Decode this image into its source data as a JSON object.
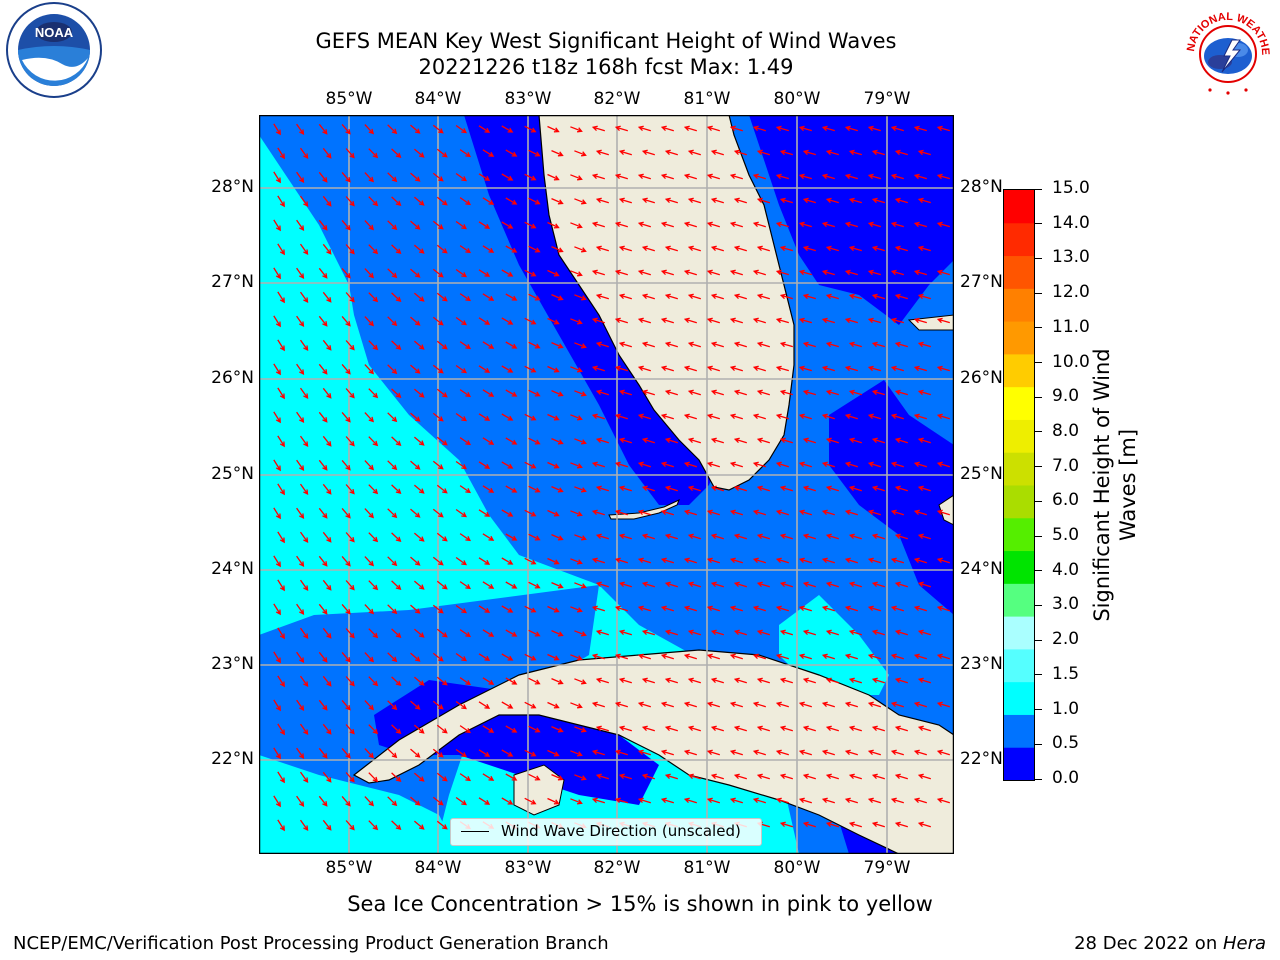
{
  "header": {
    "title_line1": "GEFS MEAN Key West Significant Height of Wind Waves",
    "title_line2": "20221226 t18z 168h fcst   Max: 1.49"
  },
  "logos": {
    "left": {
      "icon": "noaa-logo",
      "text": "NOAA"
    },
    "right": {
      "icon": "national-weather-service-logo",
      "text": "NATIONAL WEATHER SERVICE"
    }
  },
  "map": {
    "lon_labels": [
      "85°W",
      "84°W",
      "83°W",
      "82°W",
      "81°W",
      "80°W",
      "79°W"
    ],
    "lat_labels": [
      "28°N",
      "27°N",
      "26°N",
      "25°N",
      "24°N",
      "23°N",
      "22°N"
    ],
    "land_color": "#efecdc",
    "arrow_color": "#ff0000",
    "legend_label": "Wind Wave Direction (unscaled)"
  },
  "colorbar": {
    "label_line1": "Significant Height of Wind",
    "label_line2": "Waves [m]",
    "ticks": [
      "0.0",
      "0.5",
      "1.0",
      "1.5",
      "2.0",
      "3.0",
      "4.0",
      "5.0",
      "6.0",
      "7.0",
      "8.0",
      "9.0",
      "10.0",
      "11.0",
      "12.0",
      "13.0",
      "14.0",
      "15.0"
    ],
    "colors": [
      "#0000ff",
      "#0073ff",
      "#00ffff",
      "#55ffff",
      "#aaffff",
      "#55ff80",
      "#00e400",
      "#55ee00",
      "#aadd00",
      "#cce000",
      "#eeee00",
      "#ffff00",
      "#ffcc00",
      "#ff9900",
      "#ff8000",
      "#ff5500",
      "#ff2a00",
      "#ff0000"
    ]
  },
  "note": "Sea Ice Concentration > 15% is shown in pink to yellow",
  "footer": {
    "left": "NCEP/EMC/Verification Post Processing Product Generation Branch",
    "right_date": "28 Dec 2022 on ",
    "right_host": "Hera"
  }
}
